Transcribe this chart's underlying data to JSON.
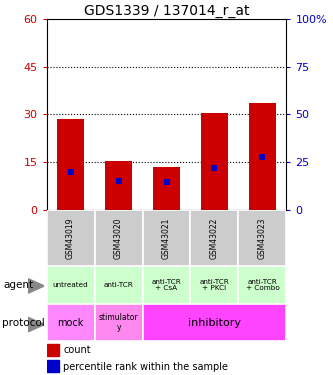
{
  "title": "GDS1339 / 137014_r_at",
  "samples": [
    "GSM43019",
    "GSM43020",
    "GSM43021",
    "GSM43022",
    "GSM43023"
  ],
  "count_values": [
    28.5,
    15.5,
    13.5,
    30.5,
    33.5
  ],
  "percentile_values": [
    20.0,
    15.0,
    14.5,
    22.0,
    27.5
  ],
  "left_ylim": [
    0,
    60
  ],
  "right_ylim": [
    0,
    100
  ],
  "left_yticks": [
    0,
    15,
    30,
    45,
    60
  ],
  "right_yticks": [
    0,
    25,
    50,
    75,
    100
  ],
  "right_yticklabels": [
    "0",
    "25",
    "50",
    "75",
    "100%"
  ],
  "count_color": "#cc0000",
  "percentile_color": "#0000cc",
  "bar_width": 0.55,
  "agent_labels": [
    "untreated",
    "anti-TCR",
    "anti-TCR\n+ CsA",
    "anti-TCR\n+ PKCi",
    "anti-TCR\n+ Combo"
  ],
  "agent_bg": "#ccffcc",
  "protocol_mock_color": "#ff88ff",
  "protocol_stim_color": "#ff88ee",
  "protocol_inhib_color": "#ff44ff",
  "sample_bg_color": "#cccccc",
  "legend_count_color": "#cc0000",
  "legend_pct_color": "#0000cc",
  "fig_bg": "#ffffff",
  "left_tick_color": "#cc0000",
  "right_tick_color": "#0000cc"
}
